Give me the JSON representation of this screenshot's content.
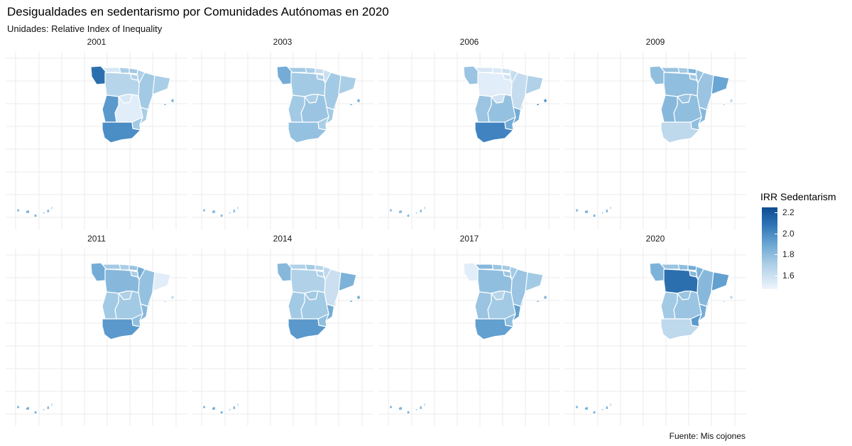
{
  "title": "Desigualdades en sedentarismo por Comunidades Autónomas en 2020",
  "subtitle": "Unidades: Relative Index of Inequality",
  "caption": "Fuente: Mis cojones",
  "legend": {
    "title": "IRR Sedentarism",
    "ticks": [
      2.2,
      2.0,
      1.8,
      1.6
    ],
    "tick_labels": [
      "2.2",
      "2.0",
      "1.8",
      "1.6"
    ],
    "range": [
      1.47,
      2.25
    ],
    "colors": {
      "low": "#eef5fd",
      "high": "#0e4c92"
    }
  },
  "map_colors": {
    "border": "#ffffff",
    "grid": "#ebebeb",
    "background": "#ffffff"
  },
  "panels": [
    {
      "year": "2001",
      "values": {
        "galicia": 2.05,
        "asturias": 1.55,
        "cantabria": 1.7,
        "pais_vasco": 1.72,
        "navarra": 1.68,
        "rioja": 1.68,
        "aragon": 1.72,
        "cataluna": 1.7,
        "castilla_leon": 1.66,
        "madrid": 1.55,
        "castilla_mancha": 1.52,
        "valencia": 1.7,
        "extremadura": 1.88,
        "andalucia": 1.92,
        "murcia": 1.72,
        "baleares": 1.78,
        "canarias": 1.8
      }
    },
    {
      "year": "2003",
      "values": {
        "galicia": 1.82,
        "asturias": 1.72,
        "cantabria": 1.7,
        "pais_vasco": 1.62,
        "navarra": 1.6,
        "rioja": 1.68,
        "aragon": 1.72,
        "cataluna": 1.7,
        "castilla_leon": 1.72,
        "madrid": 1.7,
        "castilla_mancha": 1.74,
        "valencia": 1.72,
        "extremadura": 1.72,
        "andalucia": 1.75,
        "murcia": 1.7,
        "baleares": 1.8,
        "canarias": 1.78
      }
    },
    {
      "year": "2006",
      "values": {
        "galicia": 1.74,
        "asturias": 1.55,
        "cantabria": 1.54,
        "pais_vasco": 1.6,
        "navarra": 1.62,
        "rioja": 1.58,
        "aragon": 1.62,
        "cataluna": 1.68,
        "castilla_leon": 1.52,
        "madrid": 1.58,
        "castilla_mancha": 1.75,
        "valencia": 1.82,
        "extremadura": 1.74,
        "andalucia": 1.95,
        "murcia": 1.82,
        "baleares": 1.88,
        "canarias": 1.78
      }
    },
    {
      "year": "2009",
      "values": {
        "galicia": 1.76,
        "asturias": 1.74,
        "cantabria": 1.72,
        "pais_vasco": 1.8,
        "navarra": 1.74,
        "rioja": 1.72,
        "aragon": 1.74,
        "cataluna": 1.84,
        "castilla_leon": 1.76,
        "madrid": 1.74,
        "castilla_mancha": 1.76,
        "valencia": 1.78,
        "extremadura": 1.78,
        "andalucia": 1.64,
        "murcia": 1.76,
        "baleares": 1.62,
        "canarias": 1.8
      }
    },
    {
      "year": "2011",
      "values": {
        "galicia": 1.82,
        "asturias": 1.72,
        "cantabria": 1.7,
        "pais_vasco": 1.74,
        "navarra": 1.82,
        "rioja": 1.7,
        "aragon": 1.75,
        "cataluna": 1.52,
        "castilla_leon": 1.78,
        "madrid": 1.68,
        "castilla_mancha": 1.72,
        "valencia": 1.78,
        "extremadura": 1.72,
        "andalucia": 1.88,
        "murcia": 1.76,
        "baleares": 1.62,
        "canarias": 1.8
      }
    },
    {
      "year": "2014",
      "values": {
        "galicia": 1.78,
        "asturias": 1.68,
        "cantabria": 1.72,
        "pais_vasco": 1.66,
        "navarra": 1.64,
        "rioja": 1.68,
        "aragon": 1.6,
        "cataluna": 1.8,
        "castilla_leon": 1.68,
        "madrid": 1.72,
        "castilla_mancha": 1.72,
        "valencia": 1.82,
        "extremadura": 1.72,
        "andalucia": 1.88,
        "murcia": 1.76,
        "baleares": 1.82,
        "canarias": 1.8
      }
    },
    {
      "year": "2017",
      "values": {
        "galicia": 1.52,
        "asturias": 1.78,
        "cantabria": 1.74,
        "pais_vasco": 1.72,
        "navarra": 1.72,
        "rioja": 1.74,
        "aragon": 1.74,
        "cataluna": 1.72,
        "castilla_leon": 1.76,
        "madrid": 1.66,
        "castilla_mancha": 1.72,
        "valencia": 1.86,
        "extremadura": 1.74,
        "andalucia": 1.86,
        "murcia": 1.76,
        "baleares": 1.78,
        "canarias": 1.8
      }
    },
    {
      "year": "2020",
      "values": {
        "galicia": 1.8,
        "asturias": 1.74,
        "cantabria": 1.76,
        "pais_vasco": 1.82,
        "navarra": 1.8,
        "rioja": 1.78,
        "aragon": 1.78,
        "cataluna": 1.86,
        "castilla_leon": 2.05,
        "madrid": 1.74,
        "castilla_mancha": 1.74,
        "valencia": 1.82,
        "extremadura": 1.72,
        "andalucia": 1.64,
        "murcia": 1.88,
        "baleares": 1.62,
        "canarias": 1.8
      }
    }
  ]
}
